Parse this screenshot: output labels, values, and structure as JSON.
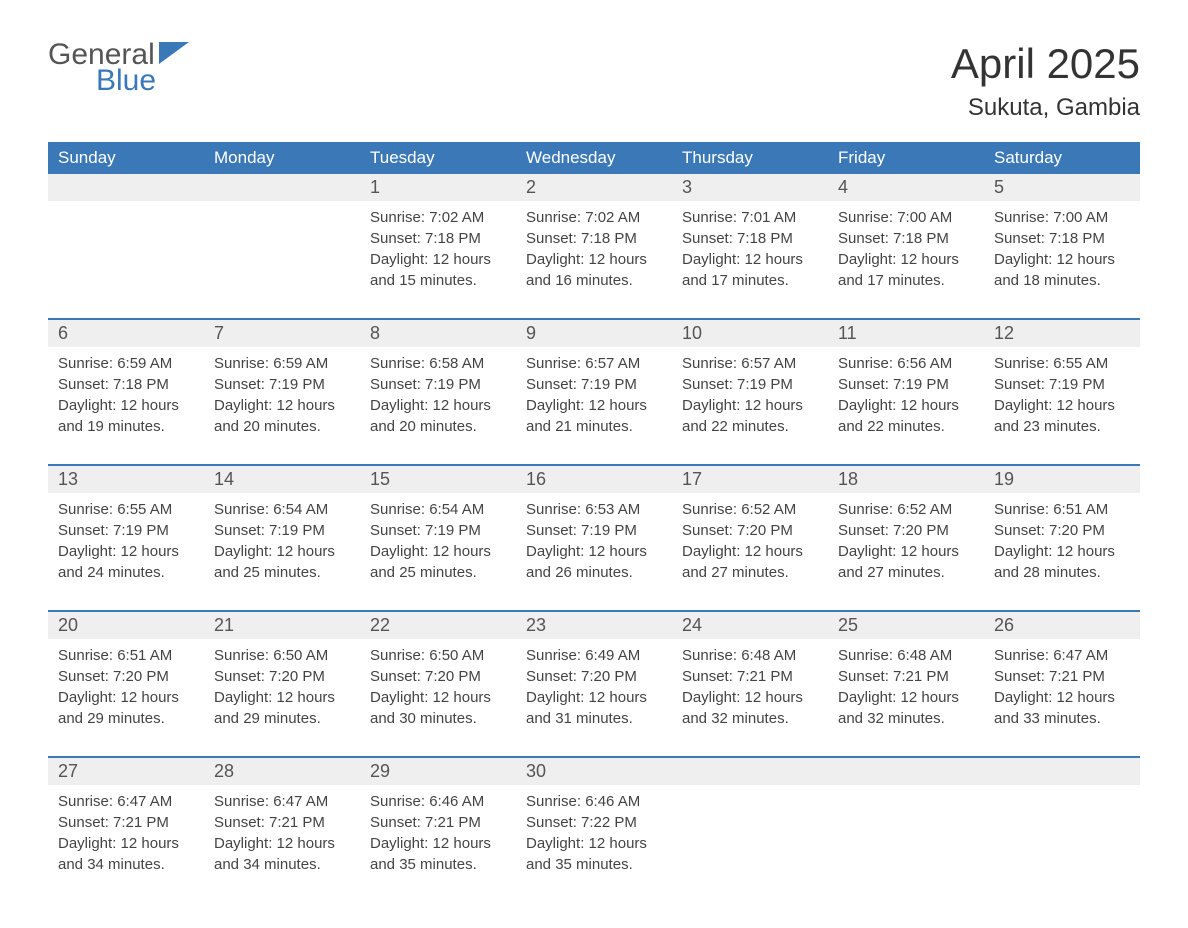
{
  "logo": {
    "word1": "General",
    "word2": "Blue"
  },
  "title": {
    "month": "April 2025",
    "location": "Sukuta, Gambia"
  },
  "colors": {
    "header_bg": "#3b78b7",
    "header_text": "#ffffff",
    "daynum_bg": "#efefef",
    "border": "#3b78b7",
    "body_text": "#444444",
    "background": "#ffffff"
  },
  "weekdays": [
    "Sunday",
    "Monday",
    "Tuesday",
    "Wednesday",
    "Thursday",
    "Friday",
    "Saturday"
  ],
  "weeks": [
    [
      {
        "day": "",
        "sunrise": "",
        "sunset": "",
        "daylight": ""
      },
      {
        "day": "",
        "sunrise": "",
        "sunset": "",
        "daylight": ""
      },
      {
        "day": "1",
        "sunrise": "Sunrise: 7:02 AM",
        "sunset": "Sunset: 7:18 PM",
        "daylight": "Daylight: 12 hours and 15 minutes."
      },
      {
        "day": "2",
        "sunrise": "Sunrise: 7:02 AM",
        "sunset": "Sunset: 7:18 PM",
        "daylight": "Daylight: 12 hours and 16 minutes."
      },
      {
        "day": "3",
        "sunrise": "Sunrise: 7:01 AM",
        "sunset": "Sunset: 7:18 PM",
        "daylight": "Daylight: 12 hours and 17 minutes."
      },
      {
        "day": "4",
        "sunrise": "Sunrise: 7:00 AM",
        "sunset": "Sunset: 7:18 PM",
        "daylight": "Daylight: 12 hours and 17 minutes."
      },
      {
        "day": "5",
        "sunrise": "Sunrise: 7:00 AM",
        "sunset": "Sunset: 7:18 PM",
        "daylight": "Daylight: 12 hours and 18 minutes."
      }
    ],
    [
      {
        "day": "6",
        "sunrise": "Sunrise: 6:59 AM",
        "sunset": "Sunset: 7:18 PM",
        "daylight": "Daylight: 12 hours and 19 minutes."
      },
      {
        "day": "7",
        "sunrise": "Sunrise: 6:59 AM",
        "sunset": "Sunset: 7:19 PM",
        "daylight": "Daylight: 12 hours and 20 minutes."
      },
      {
        "day": "8",
        "sunrise": "Sunrise: 6:58 AM",
        "sunset": "Sunset: 7:19 PM",
        "daylight": "Daylight: 12 hours and 20 minutes."
      },
      {
        "day": "9",
        "sunrise": "Sunrise: 6:57 AM",
        "sunset": "Sunset: 7:19 PM",
        "daylight": "Daylight: 12 hours and 21 minutes."
      },
      {
        "day": "10",
        "sunrise": "Sunrise: 6:57 AM",
        "sunset": "Sunset: 7:19 PM",
        "daylight": "Daylight: 12 hours and 22 minutes."
      },
      {
        "day": "11",
        "sunrise": "Sunrise: 6:56 AM",
        "sunset": "Sunset: 7:19 PM",
        "daylight": "Daylight: 12 hours and 22 minutes."
      },
      {
        "day": "12",
        "sunrise": "Sunrise: 6:55 AM",
        "sunset": "Sunset: 7:19 PM",
        "daylight": "Daylight: 12 hours and 23 minutes."
      }
    ],
    [
      {
        "day": "13",
        "sunrise": "Sunrise: 6:55 AM",
        "sunset": "Sunset: 7:19 PM",
        "daylight": "Daylight: 12 hours and 24 minutes."
      },
      {
        "day": "14",
        "sunrise": "Sunrise: 6:54 AM",
        "sunset": "Sunset: 7:19 PM",
        "daylight": "Daylight: 12 hours and 25 minutes."
      },
      {
        "day": "15",
        "sunrise": "Sunrise: 6:54 AM",
        "sunset": "Sunset: 7:19 PM",
        "daylight": "Daylight: 12 hours and 25 minutes."
      },
      {
        "day": "16",
        "sunrise": "Sunrise: 6:53 AM",
        "sunset": "Sunset: 7:19 PM",
        "daylight": "Daylight: 12 hours and 26 minutes."
      },
      {
        "day": "17",
        "sunrise": "Sunrise: 6:52 AM",
        "sunset": "Sunset: 7:20 PM",
        "daylight": "Daylight: 12 hours and 27 minutes."
      },
      {
        "day": "18",
        "sunrise": "Sunrise: 6:52 AM",
        "sunset": "Sunset: 7:20 PM",
        "daylight": "Daylight: 12 hours and 27 minutes."
      },
      {
        "day": "19",
        "sunrise": "Sunrise: 6:51 AM",
        "sunset": "Sunset: 7:20 PM",
        "daylight": "Daylight: 12 hours and 28 minutes."
      }
    ],
    [
      {
        "day": "20",
        "sunrise": "Sunrise: 6:51 AM",
        "sunset": "Sunset: 7:20 PM",
        "daylight": "Daylight: 12 hours and 29 minutes."
      },
      {
        "day": "21",
        "sunrise": "Sunrise: 6:50 AM",
        "sunset": "Sunset: 7:20 PM",
        "daylight": "Daylight: 12 hours and 29 minutes."
      },
      {
        "day": "22",
        "sunrise": "Sunrise: 6:50 AM",
        "sunset": "Sunset: 7:20 PM",
        "daylight": "Daylight: 12 hours and 30 minutes."
      },
      {
        "day": "23",
        "sunrise": "Sunrise: 6:49 AM",
        "sunset": "Sunset: 7:20 PM",
        "daylight": "Daylight: 12 hours and 31 minutes."
      },
      {
        "day": "24",
        "sunrise": "Sunrise: 6:48 AM",
        "sunset": "Sunset: 7:21 PM",
        "daylight": "Daylight: 12 hours and 32 minutes."
      },
      {
        "day": "25",
        "sunrise": "Sunrise: 6:48 AM",
        "sunset": "Sunset: 7:21 PM",
        "daylight": "Daylight: 12 hours and 32 minutes."
      },
      {
        "day": "26",
        "sunrise": "Sunrise: 6:47 AM",
        "sunset": "Sunset: 7:21 PM",
        "daylight": "Daylight: 12 hours and 33 minutes."
      }
    ],
    [
      {
        "day": "27",
        "sunrise": "Sunrise: 6:47 AM",
        "sunset": "Sunset: 7:21 PM",
        "daylight": "Daylight: 12 hours and 34 minutes."
      },
      {
        "day": "28",
        "sunrise": "Sunrise: 6:47 AM",
        "sunset": "Sunset: 7:21 PM",
        "daylight": "Daylight: 12 hours and 34 minutes."
      },
      {
        "day": "29",
        "sunrise": "Sunrise: 6:46 AM",
        "sunset": "Sunset: 7:21 PM",
        "daylight": "Daylight: 12 hours and 35 minutes."
      },
      {
        "day": "30",
        "sunrise": "Sunrise: 6:46 AM",
        "sunset": "Sunset: 7:22 PM",
        "daylight": "Daylight: 12 hours and 35 minutes."
      },
      {
        "day": "",
        "sunrise": "",
        "sunset": "",
        "daylight": ""
      },
      {
        "day": "",
        "sunrise": "",
        "sunset": "",
        "daylight": ""
      },
      {
        "day": "",
        "sunrise": "",
        "sunset": "",
        "daylight": ""
      }
    ]
  ]
}
